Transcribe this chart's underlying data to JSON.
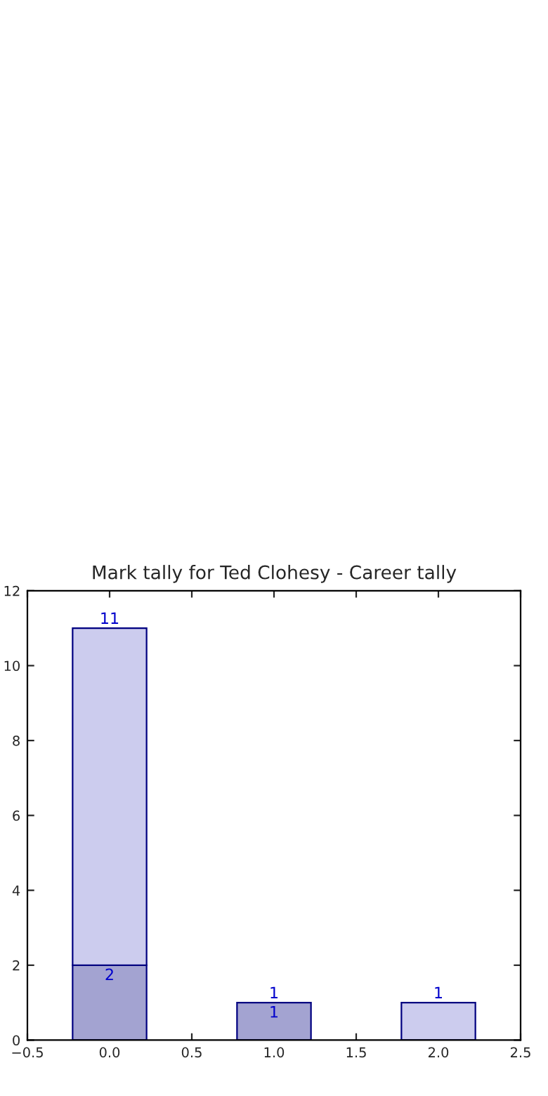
{
  "chart_data": {
    "type": "bar",
    "title": "Mark tally for Ted Clohesy - Career tally",
    "x": [
      0,
      1,
      2
    ],
    "stacked": true,
    "series": [
      {
        "color": "#a3a3d1",
        "values": [
          2,
          1,
          null
        ],
        "value_labels": [
          "2",
          "1",
          null
        ]
      },
      {
        "color": "#ccccee",
        "values": [
          9,
          null,
          1
        ]
      }
    ],
    "totals": [
      "11",
      "1",
      "1"
    ],
    "xlim": [
      -0.5,
      2.5
    ],
    "xticks": [
      {
        "value": -0.5,
        "label": "−0.5"
      },
      {
        "value": 0,
        "label": "0.0"
      },
      {
        "value": 0.5,
        "label": "0.5"
      },
      {
        "value": 1,
        "label": "1.0"
      },
      {
        "value": 1.5,
        "label": "1.5"
      },
      {
        "value": 2,
        "label": "2.0"
      },
      {
        "value": 2.5,
        "label": "2.5"
      }
    ],
    "ylim": [
      0,
      12
    ],
    "yticks": [
      0,
      2,
      4,
      6,
      8,
      10,
      12
    ],
    "grid": false
  }
}
